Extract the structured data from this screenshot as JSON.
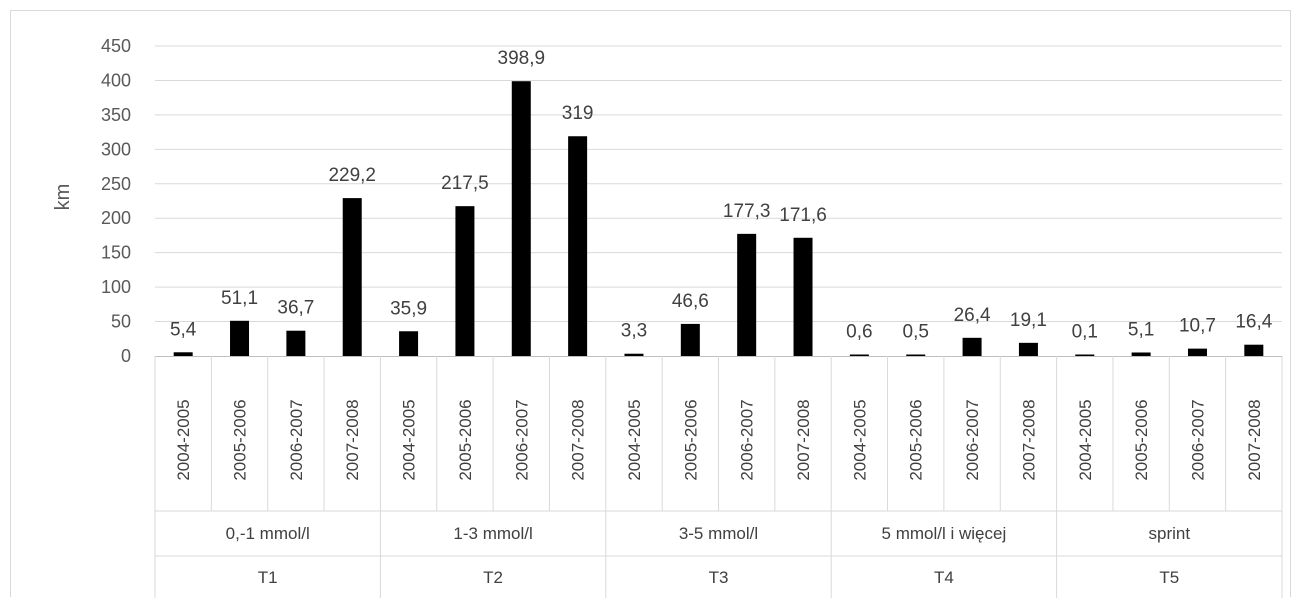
{
  "chart_data": {
    "type": "bar",
    "ylabel": "km",
    "ylim": [
      0,
      450
    ],
    "yticks": [
      0,
      50,
      100,
      150,
      200,
      250,
      300,
      350,
      400,
      450
    ],
    "grid": true,
    "legend": "none",
    "bar_color": "#000000",
    "groups": [
      {
        "zone": "T1",
        "intensity": "0,-1 mmol/l",
        "seasons": [
          "2004-2005",
          "2005-2006",
          "2006-2007",
          "2007-2008"
        ],
        "values": [
          5.4,
          51.1,
          36.7,
          229.2
        ],
        "labels": [
          "5,4",
          "51,1",
          "36,7",
          "229,2"
        ]
      },
      {
        "zone": "T2",
        "intensity": "1-3 mmol/l",
        "seasons": [
          "2004-2005",
          "2005-2006",
          "2006-2007",
          "2007-2008"
        ],
        "values": [
          35.9,
          217.5,
          398.9,
          319
        ],
        "labels": [
          "35,9",
          "217,5",
          "398,9",
          "319"
        ]
      },
      {
        "zone": "T3",
        "intensity": "3-5 mmol/l",
        "seasons": [
          "2004-2005",
          "2005-2006",
          "2006-2007",
          "2007-2008"
        ],
        "values": [
          3.3,
          46.6,
          177.3,
          171.6
        ],
        "labels": [
          "3,3",
          "46,6",
          "177,3",
          "171,6"
        ]
      },
      {
        "zone": "T4",
        "intensity": "5 mmol/l i więcej",
        "seasons": [
          "2004-2005",
          "2005-2006",
          "2006-2007",
          "2007-2008"
        ],
        "values": [
          0.6,
          0.5,
          26.4,
          19.1
        ],
        "labels": [
          "0,6",
          "0,5",
          "26,4",
          "19,1"
        ]
      },
      {
        "zone": "T5",
        "intensity": "sprint",
        "seasons": [
          "2004-2005",
          "2005-2006",
          "2006-2007",
          "2007-2008"
        ],
        "values": [
          0.1,
          5.1,
          10.7,
          16.4
        ],
        "labels": [
          "0,1",
          "5,1",
          "10,7",
          "16,4"
        ]
      }
    ]
  }
}
